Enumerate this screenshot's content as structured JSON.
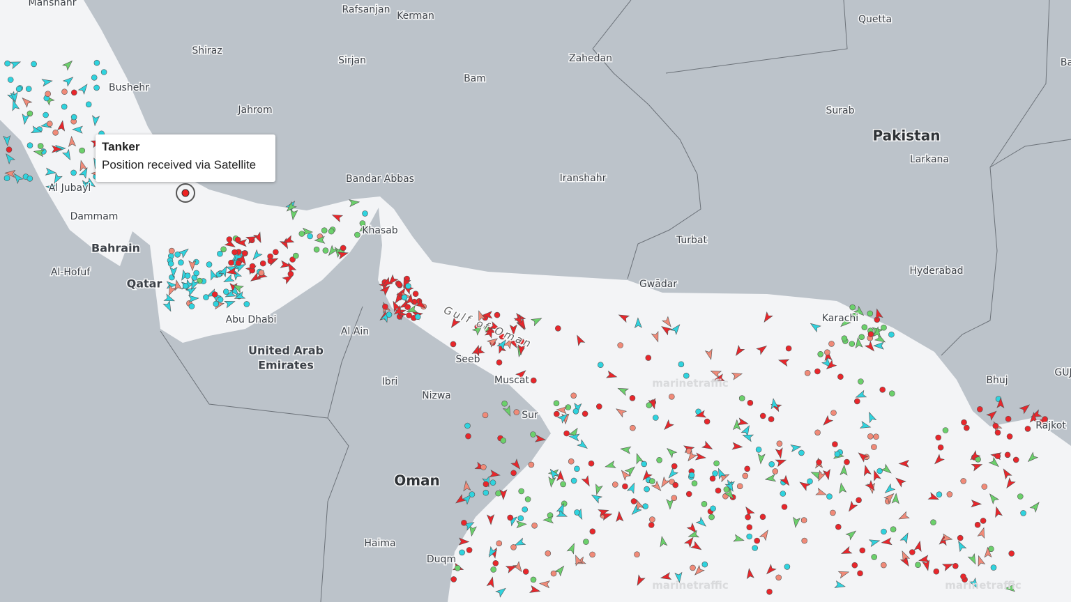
{
  "places": [
    {
      "label": "Manshahr",
      "kind": "city"
    },
    {
      "label": "Rafsanjan",
      "kind": "city"
    },
    {
      "label": "Kerman",
      "kind": "city"
    },
    {
      "label": "Quetta",
      "kind": "city"
    },
    {
      "label": "Shiraz",
      "kind": "city"
    },
    {
      "label": "Sirjan",
      "kind": "city"
    },
    {
      "label": "Zahedan",
      "kind": "city"
    },
    {
      "label": "Bam",
      "kind": "city"
    },
    {
      "label": "Bushehr",
      "kind": "city"
    },
    {
      "label": "Jahrom",
      "kind": "city"
    },
    {
      "label": "Surab",
      "kind": "city"
    },
    {
      "label": "Pakistan",
      "kind": "country"
    },
    {
      "label": "Larkana",
      "kind": "city"
    },
    {
      "label": "Iranshahr",
      "kind": "city"
    },
    {
      "label": "Bandar Abbas",
      "kind": "city"
    },
    {
      "label": "Khasab",
      "kind": "city"
    },
    {
      "label": "Turbat",
      "kind": "city"
    },
    {
      "label": "Hyderabad",
      "kind": "city"
    },
    {
      "label": "Gwādar",
      "kind": "city"
    },
    {
      "label": "Al Jubayl",
      "kind": "city"
    },
    {
      "label": "Dammam",
      "kind": "city"
    },
    {
      "label": "Bahrain",
      "kind": "region"
    },
    {
      "label": "Al-Hofuf",
      "kind": "city"
    },
    {
      "label": "Qatar",
      "kind": "region"
    },
    {
      "label": "Abu Dhabi",
      "kind": "city"
    },
    {
      "label": "United Arab",
      "kind": "region"
    },
    {
      "label": "Emirates",
      "kind": "region"
    },
    {
      "label": "Al Ain",
      "kind": "city"
    },
    {
      "label": "Ibri",
      "kind": "city"
    },
    {
      "label": "Nizwa",
      "kind": "city"
    },
    {
      "label": "Seeb",
      "kind": "city"
    },
    {
      "label": "Muscat",
      "kind": "city"
    },
    {
      "label": "Sur",
      "kind": "city"
    },
    {
      "label": "Karachi",
      "kind": "city"
    },
    {
      "label": "Bhuj",
      "kind": "city"
    },
    {
      "label": "Rajkot",
      "kind": "city"
    },
    {
      "label": "Oman",
      "kind": "country"
    },
    {
      "label": "Haima",
      "kind": "city"
    },
    {
      "label": "Duqm",
      "kind": "city"
    },
    {
      "label": "GUJ",
      "kind": "city"
    },
    {
      "label": "Ba",
      "kind": "city"
    }
  ],
  "sea_label": "Gulf of Oman",
  "watermark": "marinetraffic",
  "tooltip": {
    "title": "Tanker",
    "text": "Position received via Satellite"
  }
}
